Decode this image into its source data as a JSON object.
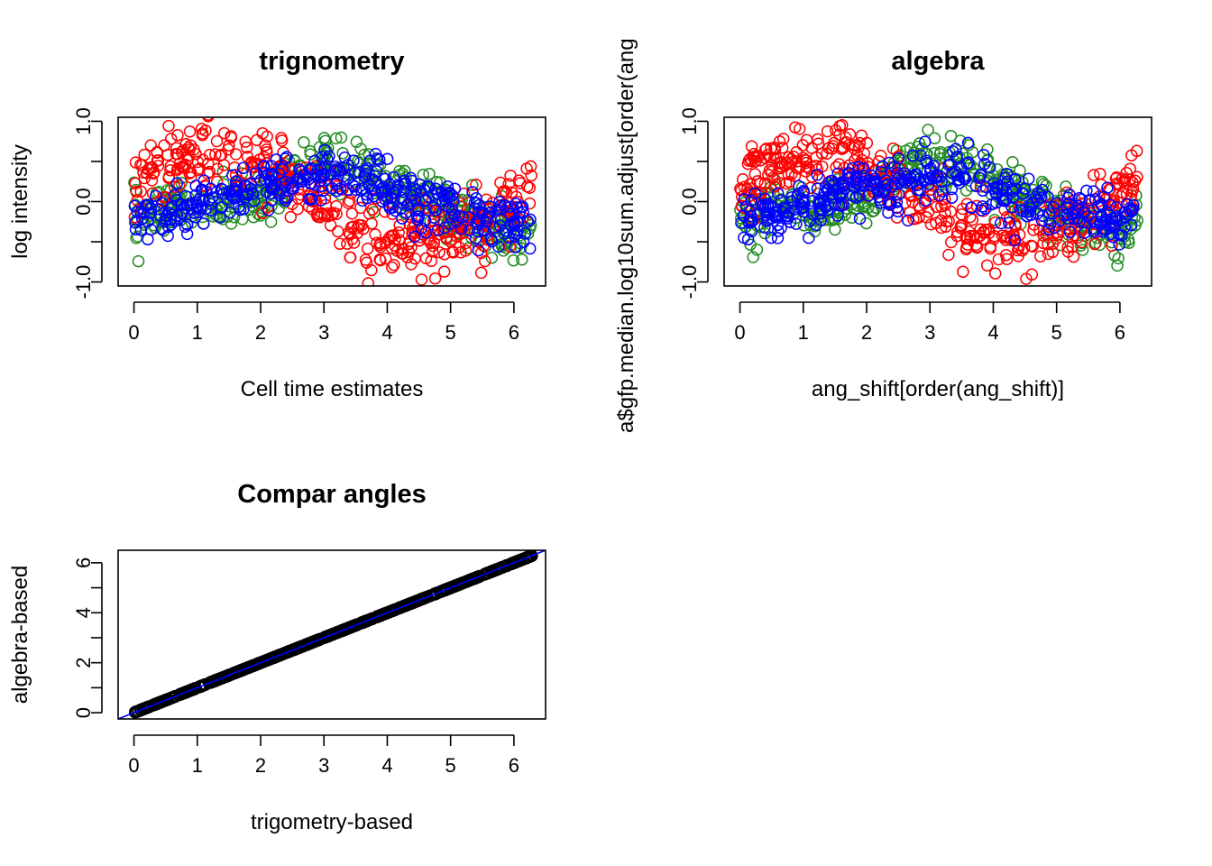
{
  "chart_data": [
    {
      "type": "scatter",
      "title": "trignometry",
      "xlabel": "Cell time estimates",
      "ylabel": "log intensity",
      "xlim": [
        -0.25,
        6.5
      ],
      "ylim": [
        -1.05,
        1.05
      ],
      "xticks": [
        0,
        1,
        2,
        3,
        4,
        5,
        6
      ],
      "yticks": [
        -1.0,
        -0.5,
        0.0,
        0.5,
        1.0
      ],
      "ytick_labels": [
        "-1.0",
        "",
        "0.0",
        "",
        "1.0"
      ],
      "marker": "open-circle",
      "series": [
        {
          "color": "#228B22",
          "x": [
            0.0,
            0.5,
            1.0,
            1.5,
            2.0,
            2.5,
            3.0,
            3.5,
            4.0,
            4.5,
            5.0,
            5.5,
            6.0,
            6.28
          ],
          "y": [
            -0.2,
            -0.1,
            -0.05,
            -0.05,
            0.05,
            0.3,
            0.55,
            0.45,
            0.25,
            0.05,
            -0.1,
            -0.3,
            -0.45,
            -0.25
          ]
        },
        {
          "color": "#FF0000",
          "x": [
            0.0,
            0.5,
            1.0,
            1.5,
            2.0,
            2.5,
            3.0,
            3.5,
            4.0,
            4.5,
            5.0,
            5.5,
            6.0,
            6.28
          ],
          "y": [
            0.2,
            0.45,
            0.55,
            0.55,
            0.4,
            0.2,
            0.0,
            -0.35,
            -0.45,
            -0.45,
            -0.4,
            -0.3,
            0.05,
            0.2
          ]
        },
        {
          "color": "#0000FF",
          "x": [
            0.0,
            0.5,
            1.0,
            1.5,
            2.0,
            2.5,
            3.0,
            3.5,
            4.0,
            4.5,
            5.0,
            5.5,
            6.0,
            6.28
          ],
          "y": [
            -0.2,
            -0.15,
            -0.05,
            0.05,
            0.2,
            0.2,
            0.35,
            0.25,
            0.15,
            0.0,
            -0.1,
            -0.2,
            -0.25,
            -0.25
          ]
        }
      ]
    },
    {
      "type": "scatter",
      "title": "algebra",
      "xlabel": "ang_shift[order(ang_shift)]",
      "ylabel": "a$gfp.median.log10sum.adjust[order(ang",
      "xlim": [
        -0.25,
        6.5
      ],
      "ylim": [
        -1.05,
        1.05
      ],
      "xticks": [
        0,
        1,
        2,
        3,
        4,
        5,
        6
      ],
      "yticks": [
        -1.0,
        -0.5,
        0.0,
        0.5,
        1.0
      ],
      "ytick_labels": [
        "-1.0",
        "",
        "0.0",
        "",
        "1.0"
      ],
      "marker": "open-circle",
      "series": [
        {
          "color": "#228B22",
          "x": [
            0.0,
            0.5,
            1.0,
            1.5,
            2.0,
            2.5,
            3.0,
            3.5,
            4.0,
            4.5,
            5.0,
            5.5,
            6.0,
            6.28
          ],
          "y": [
            -0.2,
            -0.1,
            -0.05,
            -0.05,
            0.05,
            0.3,
            0.55,
            0.45,
            0.25,
            0.05,
            -0.1,
            -0.3,
            -0.45,
            -0.25
          ]
        },
        {
          "color": "#FF0000",
          "x": [
            0.0,
            0.5,
            1.0,
            1.5,
            2.0,
            2.5,
            3.0,
            3.5,
            4.0,
            4.5,
            5.0,
            5.5,
            6.0,
            6.28
          ],
          "y": [
            0.2,
            0.45,
            0.55,
            0.55,
            0.4,
            0.2,
            0.0,
            -0.35,
            -0.45,
            -0.45,
            -0.4,
            -0.3,
            0.05,
            0.2
          ]
        },
        {
          "color": "#0000FF",
          "x": [
            0.0,
            0.5,
            1.0,
            1.5,
            2.0,
            2.5,
            3.0,
            3.5,
            4.0,
            4.5,
            5.0,
            5.5,
            6.0,
            6.28
          ],
          "y": [
            -0.2,
            -0.15,
            -0.05,
            0.05,
            0.2,
            0.2,
            0.35,
            0.25,
            0.15,
            0.0,
            -0.1,
            -0.2,
            -0.25,
            -0.25
          ]
        }
      ]
    },
    {
      "type": "scatter",
      "title": "Compar angles",
      "xlabel": "trigometry-based",
      "ylabel": "algebra-based",
      "xlim": [
        -0.25,
        6.5
      ],
      "ylim": [
        -0.25,
        6.5
      ],
      "xticks": [
        0,
        1,
        2,
        3,
        4,
        5,
        6
      ],
      "yticks": [
        0,
        1,
        2,
        3,
        4,
        5,
        6
      ],
      "ytick_labels": [
        "0",
        "",
        "2",
        "",
        "4",
        "",
        "6"
      ],
      "marker": "open-circle",
      "series": [
        {
          "color": "#000000",
          "x": [
            0.0,
            0.5,
            1.0,
            1.5,
            2.0,
            2.5,
            3.0,
            3.5,
            4.0,
            4.5,
            5.0,
            5.5,
            6.0,
            6.28
          ],
          "y": [
            0.0,
            0.5,
            1.0,
            1.5,
            2.0,
            2.5,
            3.0,
            3.5,
            4.0,
            4.5,
            5.0,
            5.5,
            6.0,
            6.28
          ]
        }
      ],
      "reference_line": {
        "intercept": 0,
        "slope": 1,
        "color": "#0000FF"
      }
    }
  ]
}
